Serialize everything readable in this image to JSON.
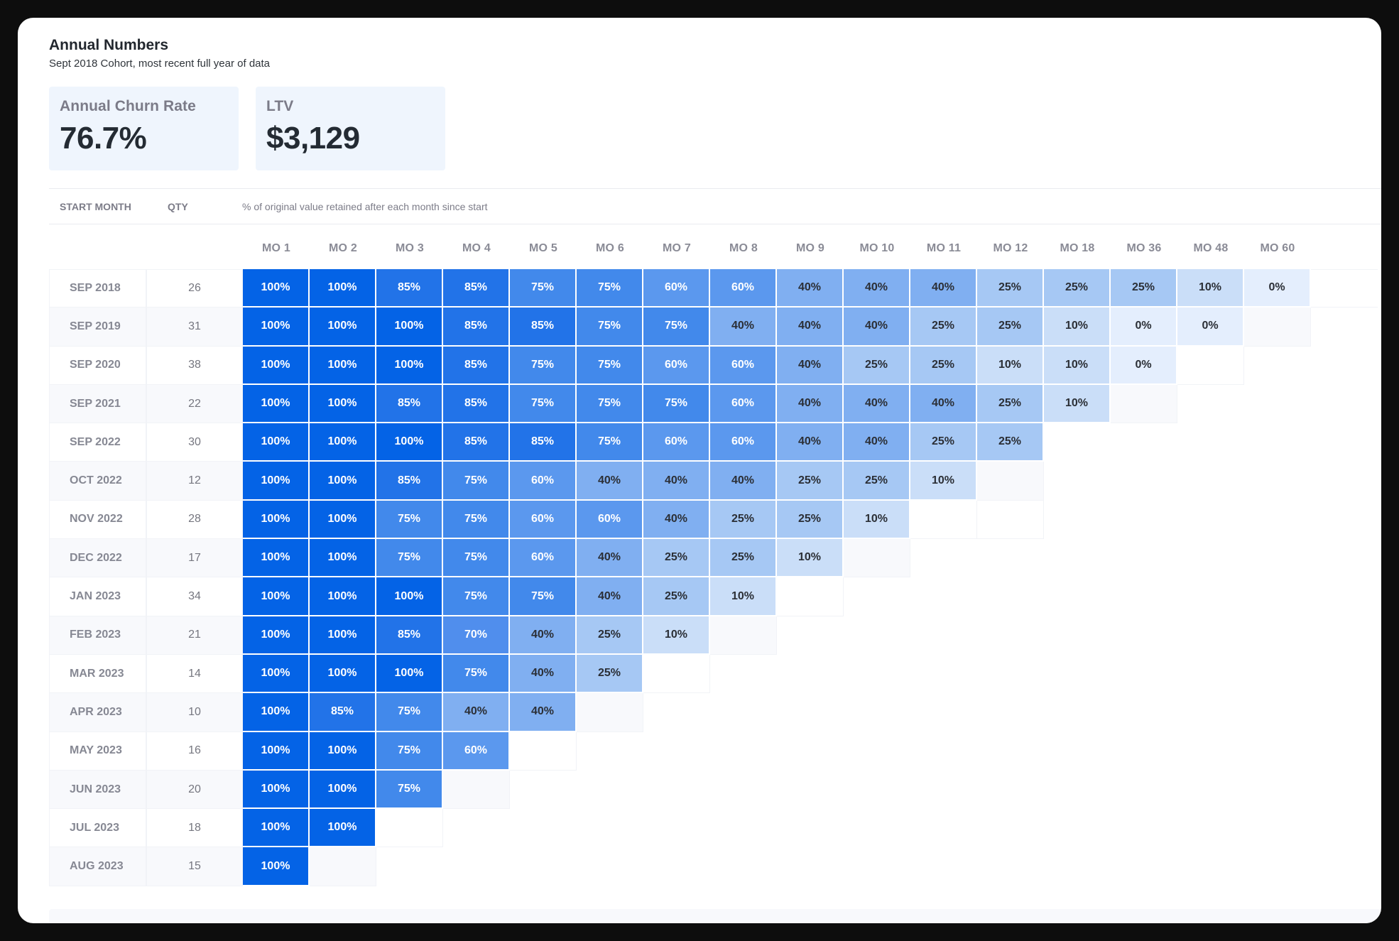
{
  "header": {
    "title": "Annual Numbers",
    "subtitle": "Sept 2018 Cohort, most recent full year of data"
  },
  "stats": [
    {
      "label": "Annual Churn Rate",
      "value": "76.7%"
    },
    {
      "label": "LTV",
      "value": "$3,129"
    }
  ],
  "table": {
    "start_month_header": "START MONTH",
    "qty_header": "QTY",
    "description": "% of original value retained after each month since start",
    "columns": [
      "MO 1",
      "MO 2",
      "MO 3",
      "MO 4",
      "MO 5",
      "MO 6",
      "MO 7",
      "MO 8",
      "MO 9",
      "MO 10",
      "MO 11",
      "MO 12",
      "MO 18",
      "MO 36",
      "MO 48",
      "MO 60"
    ]
  },
  "colors": {
    "100": "#0463e6",
    "85": "#2273e8",
    "75": "#4289eb",
    "70": "#508eed",
    "60": "#5b98ee",
    "40": "#80aff1",
    "25": "#a6c8f4",
    "10": "#cadef8",
    "0": "#e4eefd"
  },
  "chart_data": {
    "type": "heatmap",
    "title": "Annual Numbers",
    "subtitle": "Sept 2018 Cohort, most recent full year of data",
    "xlabel": "% of original value retained after each month since start",
    "ylabel": "START MONTH",
    "x": [
      "MO 1",
      "MO 2",
      "MO 3",
      "MO 4",
      "MO 5",
      "MO 6",
      "MO 7",
      "MO 8",
      "MO 9",
      "MO 10",
      "MO 11",
      "MO 12",
      "MO 18",
      "MO 36",
      "MO 48",
      "MO 60"
    ],
    "rows": [
      {
        "month": "SEP 2018",
        "qty": 26,
        "values": [
          "100%",
          "100%",
          "85%",
          "85%",
          "75%",
          "75%",
          "60%",
          "60%",
          "40%",
          "40%",
          "40%",
          "25%",
          "25%",
          "25%",
          "10%",
          "0%"
        ],
        "empty_after": 0
      },
      {
        "month": "SEP 2019",
        "qty": 31,
        "values": [
          "100%",
          "100%",
          "100%",
          "85%",
          "85%",
          "75%",
          "75%",
          "40%",
          "40%",
          "40%",
          "25%",
          "25%",
          "10%",
          "0%",
          "0%"
        ],
        "empty_after": 1
      },
      {
        "month": "SEP 2020",
        "qty": 38,
        "values": [
          "100%",
          "100%",
          "100%",
          "85%",
          "75%",
          "75%",
          "60%",
          "60%",
          "40%",
          "25%",
          "25%",
          "10%",
          "10%",
          "0%"
        ],
        "empty_after": 1
      },
      {
        "month": "SEP 2021",
        "qty": 22,
        "values": [
          "100%",
          "100%",
          "85%",
          "85%",
          "75%",
          "75%",
          "75%",
          "60%",
          "40%",
          "40%",
          "40%",
          "25%",
          "10%"
        ],
        "empty_after": 1
      },
      {
        "month": "SEP 2022",
        "qty": 30,
        "values": [
          "100%",
          "100%",
          "100%",
          "85%",
          "85%",
          "75%",
          "60%",
          "60%",
          "40%",
          "40%",
          "25%",
          "25%"
        ],
        "empty_after": 0
      },
      {
        "month": "OCT 2022",
        "qty": 12,
        "values": [
          "100%",
          "100%",
          "85%",
          "75%",
          "60%",
          "40%",
          "40%",
          "40%",
          "25%",
          "25%",
          "10%"
        ],
        "empty_after": 1
      },
      {
        "month": "NOV 2022",
        "qty": 28,
        "values": [
          "100%",
          "100%",
          "75%",
          "75%",
          "60%",
          "60%",
          "40%",
          "25%",
          "25%",
          "10%"
        ],
        "empty_after": 2
      },
      {
        "month": "DEC 2022",
        "qty": 17,
        "values": [
          "100%",
          "100%",
          "75%",
          "75%",
          "60%",
          "40%",
          "25%",
          "25%",
          "10%"
        ],
        "empty_after": 1
      },
      {
        "month": "JAN 2023",
        "qty": 34,
        "values": [
          "100%",
          "100%",
          "100%",
          "75%",
          "75%",
          "40%",
          "25%",
          "10%"
        ],
        "empty_after": 1
      },
      {
        "month": "FEB 2023",
        "qty": 21,
        "values": [
          "100%",
          "100%",
          "85%",
          "70%",
          "40%",
          "25%",
          "10%"
        ],
        "empty_after": 1
      },
      {
        "month": "MAR 2023",
        "qty": 14,
        "values": [
          "100%",
          "100%",
          "100%",
          "75%",
          "40%",
          "25%"
        ],
        "empty_after": 1
      },
      {
        "month": "APR 2023",
        "qty": 10,
        "values": [
          "100%",
          "85%",
          "75%",
          "40%",
          "40%"
        ],
        "empty_after": 1
      },
      {
        "month": "MAY 2023",
        "qty": 16,
        "values": [
          "100%",
          "100%",
          "75%",
          "60%"
        ],
        "empty_after": 1
      },
      {
        "month": "JUN 2023",
        "qty": 20,
        "values": [
          "100%",
          "100%",
          "75%"
        ],
        "empty_after": 1
      },
      {
        "month": "JUL 2023",
        "qty": 18,
        "values": [
          "100%",
          "100%"
        ],
        "empty_after": 1
      },
      {
        "month": "AUG 2023",
        "qty": 15,
        "values": [
          "100%"
        ],
        "empty_after": 1
      }
    ],
    "color_scale": "blue (100%) to very light blue (0%)",
    "legend": "none"
  }
}
